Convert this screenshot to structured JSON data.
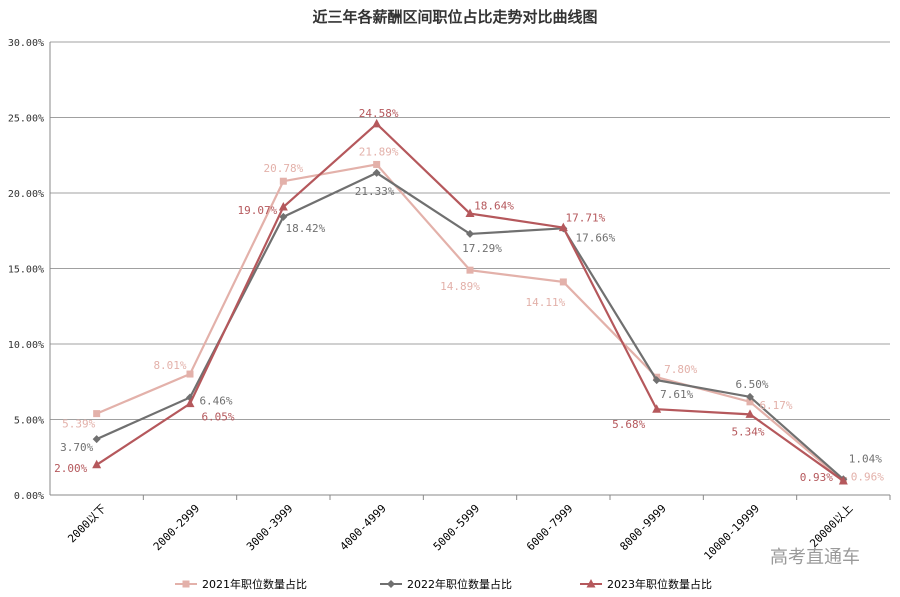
{
  "chart_data": {
    "type": "line",
    "title": "近三年各薪酬区间职位占比走势对比曲线图",
    "categories": [
      "2000以下",
      "2000-2999",
      "3000-3999",
      "4000-4999",
      "5000-5999",
      "6000-7999",
      "8000-9999",
      "10000-19999",
      "20000以上"
    ],
    "ylim": [
      0,
      30
    ],
    "yticks": [
      "0.00%",
      "5.00%",
      "10.00%",
      "15.00%",
      "20.00%",
      "25.00%",
      "30.00%"
    ],
    "ytick_values": [
      0,
      5,
      10,
      15,
      20,
      25,
      30
    ],
    "grid": true,
    "legend_position": "bottom",
    "series": [
      {
        "name": "2021年职位数量占比",
        "color": "#e3b1aa",
        "marker": "square",
        "values": [
          5.39,
          8.01,
          20.78,
          21.89,
          14.89,
          14.11,
          7.8,
          6.17,
          0.96
        ],
        "labels": [
          "5.39%",
          "8.01%",
          "20.78%",
          "21.89%",
          "14.89%",
          "14.11%",
          "7.80%",
          "6.17%",
          "0.96%"
        ]
      },
      {
        "name": "2022年职位数量占比",
        "color": "#707070",
        "marker": "diamond",
        "values": [
          3.7,
          6.46,
          18.42,
          21.33,
          17.29,
          17.66,
          7.61,
          6.5,
          1.04
        ],
        "labels": [
          "3.70%",
          "6.46%",
          "18.42%",
          "21.33%",
          "17.29%",
          "17.66%",
          "7.61%",
          "6.50%",
          "1.04%"
        ]
      },
      {
        "name": "2023年职位数量占比",
        "color": "#b5585c",
        "marker": "triangle",
        "values": [
          2.0,
          6.05,
          19.07,
          24.58,
          18.64,
          17.71,
          5.68,
          5.34,
          0.93
        ],
        "labels": [
          "2.00%",
          "6.05%",
          "19.07%",
          "24.58%",
          "18.64%",
          "17.71%",
          "5.68%",
          "5.34%",
          "0.93%"
        ]
      }
    ]
  },
  "watermark": "高考直通车"
}
